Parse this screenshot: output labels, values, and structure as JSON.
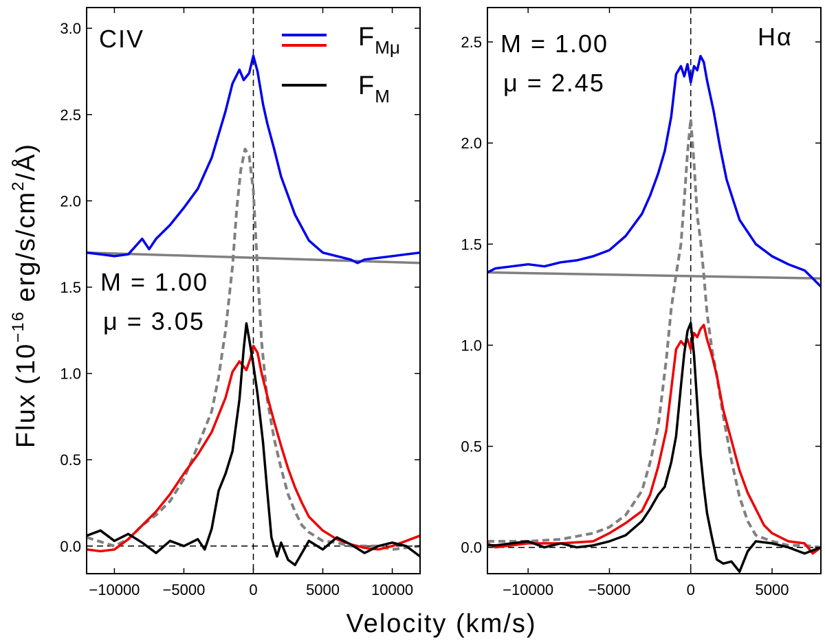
{
  "figure": {
    "xlabel": "Velocity (km/s)",
    "ylabel": "Flux (10^-16 erg/s/cm^2/Å)",
    "ylabel_parts": {
      "pre": "Flux (10",
      "exp1": "−16",
      "mid": " erg/s/cm",
      "exp2": "2",
      "post": "/Å)"
    }
  },
  "legend": [
    {
      "main": "F",
      "sub": "Mμ",
      "colors": [
        "#0000ee",
        "#ee0000"
      ]
    },
    {
      "main": "F",
      "sub": "M",
      "colors": [
        "#000000"
      ]
    }
  ],
  "chart_data": [
    {
      "type": "line",
      "panel": "left",
      "title": "CIV",
      "annotations": {
        "M": "M = 1.00",
        "mu": "μ = 3.05"
      },
      "xlim": [
        -12000,
        12000
      ],
      "ylim": [
        -0.16,
        3.12
      ],
      "xticks": [
        -10000,
        -5000,
        0,
        5000,
        10000
      ],
      "xtick_labels": [
        "−10000",
        "−5000",
        "0",
        "5000",
        "10000"
      ],
      "yticks": [
        0.0,
        0.5,
        1.0,
        1.5,
        2.0,
        2.5,
        3.0
      ],
      "ytick_labels": [
        "0.0",
        "0.5",
        "1.0",
        "1.5",
        "2.0",
        "2.5",
        "3.0"
      ],
      "reference_lines": {
        "vertical_x": 0,
        "horizontal_y": 0
      },
      "series": [
        {
          "name": "Continuum",
          "color": "#808080",
          "style": "solid",
          "x": [
            -12000,
            12000
          ],
          "y": [
            1.7,
            1.64
          ]
        },
        {
          "name": "Blue spectrum",
          "color": "#0000ee",
          "style": "solid",
          "x": [
            -12000,
            -11000,
            -10000,
            -9000,
            -8000,
            -7500,
            -7000,
            -6000,
            -5000,
            -4000,
            -3000,
            -2000,
            -1500,
            -1000,
            -700,
            -300,
            0,
            300,
            700,
            1000,
            1500,
            2000,
            3000,
            4000,
            5000,
            6000,
            7000,
            7500,
            8000,
            9000,
            10000,
            11000,
            12000
          ],
          "y": [
            1.7,
            1.69,
            1.68,
            1.69,
            1.78,
            1.72,
            1.78,
            1.86,
            1.96,
            2.07,
            2.25,
            2.52,
            2.68,
            2.76,
            2.7,
            2.74,
            2.84,
            2.75,
            2.56,
            2.45,
            2.3,
            2.14,
            1.92,
            1.77,
            1.7,
            1.68,
            1.66,
            1.64,
            1.66,
            1.67,
            1.68,
            1.69,
            1.7
          ]
        },
        {
          "name": "Broad component (dashed)",
          "color": "#808080",
          "style": "dashed",
          "x": [
            -12000,
            -10000,
            -9000,
            -8000,
            -7000,
            -6000,
            -5000,
            -4000,
            -3000,
            -2500,
            -2000,
            -1500,
            -1200,
            -900,
            -600,
            -300,
            0,
            300,
            600,
            1000,
            1500,
            2000,
            2500,
            3000,
            3500,
            4000,
            5000,
            6000,
            7000,
            8000,
            9000,
            10000,
            12000
          ],
          "y": [
            0.05,
            0.0,
            0.04,
            0.12,
            0.18,
            0.26,
            0.39,
            0.58,
            0.78,
            0.98,
            1.25,
            1.62,
            1.95,
            2.18,
            2.3,
            2.26,
            2.06,
            1.6,
            1.18,
            0.85,
            0.62,
            0.45,
            0.3,
            0.2,
            0.12,
            0.08,
            0.03,
            0.02,
            0.0,
            0.0,
            0.0,
            -0.02,
            0.0
          ]
        },
        {
          "name": "F_Mμ (red)",
          "color": "#ee0000",
          "style": "solid",
          "x": [
            -12000,
            -11000,
            -10000,
            -9000,
            -8000,
            -7000,
            -6000,
            -5000,
            -4000,
            -3000,
            -2000,
            -1500,
            -1000,
            -500,
            -200,
            0,
            300,
            600,
            1000,
            1500,
            2000,
            2500,
            3000,
            3500,
            4000,
            5000,
            6000,
            7000,
            8000,
            9000,
            10000,
            11000,
            12000
          ],
          "y": [
            -0.02,
            -0.03,
            -0.02,
            0.04,
            0.12,
            0.2,
            0.3,
            0.42,
            0.53,
            0.66,
            0.86,
            1.01,
            1.07,
            1.02,
            1.09,
            1.16,
            1.12,
            1.0,
            0.87,
            0.72,
            0.58,
            0.45,
            0.34,
            0.25,
            0.17,
            0.09,
            0.04,
            0.01,
            -0.01,
            -0.02,
            0.0,
            0.03,
            0.06
          ]
        },
        {
          "name": "F_M (black)",
          "color": "#000000",
          "style": "solid",
          "x": [
            -12000,
            -11000,
            -10000,
            -9000,
            -8000,
            -7000,
            -6000,
            -5000,
            -4000,
            -3500,
            -3000,
            -2500,
            -2000,
            -1500,
            -1000,
            -700,
            -500,
            -300,
            0,
            300,
            700,
            1000,
            1300,
            1700,
            2000,
            2500,
            3000,
            3500,
            4000,
            5000,
            6000,
            7000,
            8000,
            9000,
            10000,
            11000,
            12000
          ],
          "y": [
            0.06,
            0.09,
            0.03,
            0.07,
            0.02,
            -0.04,
            0.03,
            0.0,
            0.04,
            -0.02,
            0.1,
            0.32,
            0.42,
            0.55,
            0.85,
            1.14,
            1.29,
            1.2,
            1.05,
            0.88,
            0.6,
            0.32,
            0.05,
            -0.06,
            0.02,
            -0.08,
            -0.11,
            -0.04,
            0.03,
            -0.02,
            0.05,
            0.01,
            -0.04,
            0.0,
            0.02,
            0.0,
            -0.06
          ]
        }
      ]
    },
    {
      "type": "line",
      "panel": "right",
      "title": "Hα",
      "annotations": {
        "M": "M = 1.00",
        "mu": "μ = 2.45"
      },
      "xlim": [
        -12500,
        8000
      ],
      "ylim": [
        -0.13,
        2.67
      ],
      "xticks": [
        -10000,
        -5000,
        0,
        5000
      ],
      "xtick_labels": [
        "−10000",
        "−5000",
        "0",
        "5000"
      ],
      "yticks": [
        0.0,
        0.5,
        1.0,
        1.5,
        2.0,
        2.5
      ],
      "ytick_labels": [
        "0.0",
        "0.5",
        "1.0",
        "1.5",
        "2.0",
        "2.5"
      ],
      "reference_lines": {
        "vertical_x": 0,
        "horizontal_y": 0
      },
      "series": [
        {
          "name": "Continuum",
          "color": "#808080",
          "style": "solid",
          "x": [
            -12500,
            8000
          ],
          "y": [
            1.36,
            1.33
          ]
        },
        {
          "name": "Blue spectrum",
          "color": "#0000ee",
          "style": "solid",
          "x": [
            -12500,
            -12000,
            -11000,
            -10000,
            -9000,
            -8000,
            -7000,
            -6000,
            -5000,
            -4000,
            -3000,
            -2500,
            -2000,
            -1600,
            -1200,
            -900,
            -600,
            -400,
            -200,
            0,
            200,
            400,
            600,
            800,
            1000,
            1400,
            1800,
            2200,
            2600,
            3000,
            4000,
            5000,
            6000,
            7000,
            7500,
            8000
          ],
          "y": [
            1.36,
            1.38,
            1.39,
            1.4,
            1.39,
            1.41,
            1.42,
            1.44,
            1.47,
            1.54,
            1.65,
            1.74,
            1.85,
            1.96,
            2.13,
            2.34,
            2.38,
            2.33,
            2.39,
            2.3,
            2.38,
            2.36,
            2.43,
            2.4,
            2.31,
            2.16,
            1.98,
            1.82,
            1.72,
            1.62,
            1.5,
            1.44,
            1.4,
            1.37,
            1.33,
            1.29
          ]
        },
        {
          "name": "Broad component (dashed)",
          "color": "#808080",
          "style": "dashed",
          "x": [
            -12500,
            -10000,
            -8000,
            -6000,
            -5000,
            -4000,
            -3000,
            -2500,
            -2000,
            -1500,
            -1200,
            -900,
            -600,
            -400,
            -200,
            0,
            200,
            400,
            600,
            800,
            1000,
            1300,
            1600,
            2000,
            2500,
            3000,
            3500,
            4000,
            5000,
            6000,
            7000,
            8000
          ],
          "y": [
            0.03,
            0.03,
            0.04,
            0.07,
            0.1,
            0.16,
            0.28,
            0.42,
            0.6,
            0.93,
            1.18,
            1.35,
            1.5,
            1.72,
            1.95,
            2.12,
            1.9,
            1.64,
            1.52,
            1.35,
            1.16,
            0.98,
            0.85,
            0.65,
            0.43,
            0.25,
            0.13,
            0.06,
            0.03,
            0.01,
            0.01,
            0.0
          ]
        },
        {
          "name": "F_Mμ (red)",
          "color": "#ee0000",
          "style": "solid",
          "x": [
            -12500,
            -12000,
            -10000,
            -8000,
            -6000,
            -5000,
            -4000,
            -3000,
            -2500,
            -2000,
            -1500,
            -1200,
            -900,
            -600,
            -400,
            -200,
            0,
            200,
            400,
            600,
            800,
            1000,
            1300,
            1600,
            2000,
            2500,
            3000,
            3500,
            4000,
            4500,
            5000,
            6000,
            7000,
            7500,
            8000
          ],
          "y": [
            0.02,
            0.0,
            0.02,
            0.02,
            0.03,
            0.07,
            0.12,
            0.18,
            0.26,
            0.4,
            0.58,
            0.78,
            0.98,
            1.02,
            1.0,
            1.03,
            0.98,
            1.06,
            1.04,
            1.08,
            1.1,
            1.03,
            0.95,
            0.85,
            0.68,
            0.53,
            0.38,
            0.27,
            0.19,
            0.11,
            0.07,
            0.03,
            0.02,
            -0.03,
            0.0
          ]
        },
        {
          "name": "F_M (black)",
          "color": "#000000",
          "style": "solid",
          "x": [
            -12500,
            -12000,
            -10000,
            -9000,
            -8000,
            -7000,
            -6000,
            -5000,
            -4000,
            -3000,
            -2500,
            -2000,
            -1600,
            -1200,
            -900,
            -600,
            -400,
            -200,
            0,
            200,
            400,
            600,
            800,
            1000,
            1300,
            1600,
            2000,
            2500,
            3000,
            3500,
            4000,
            5000,
            6000,
            7000,
            8000
          ],
          "y": [
            0.01,
            0.01,
            0.03,
            0.0,
            0.02,
            0.0,
            0.01,
            0.03,
            0.06,
            0.13,
            0.19,
            0.26,
            0.3,
            0.42,
            0.55,
            0.8,
            0.96,
            1.07,
            1.11,
            0.95,
            0.71,
            0.46,
            0.3,
            0.17,
            0.05,
            -0.06,
            -0.08,
            -0.07,
            -0.12,
            -0.02,
            0.03,
            0.02,
            0.0,
            -0.03,
            0.0
          ]
        }
      ]
    }
  ]
}
